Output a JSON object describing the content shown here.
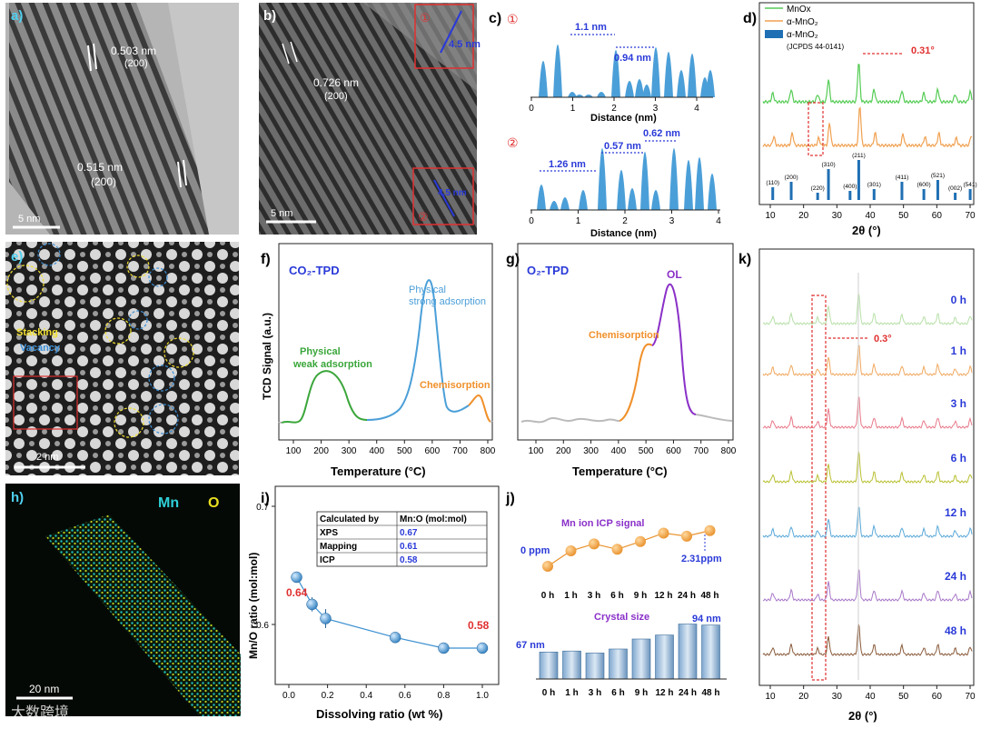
{
  "panels": {
    "a": {
      "label": "a)",
      "d1": "0.503 nm",
      "hkl1": "(200)",
      "d2": "0.515 nm",
      "hkl2": "(200)",
      "scale": "5 nm"
    },
    "b": {
      "label": "b)",
      "d1": "0.726 nm",
      "hkl1": "(200)",
      "scale": "5 nm",
      "inset1": "4.5 nm",
      "inset2": "4.5 nm",
      "m1": "①",
      "m2": "②"
    },
    "c": {
      "label": "c)",
      "m1": "①",
      "m2": "②",
      "xlabel": "Distance (nm)",
      "top_ann": [
        "1.1 nm",
        "0.94 nm"
      ],
      "bot_ann": [
        "1.26 nm",
        "0.57 nm",
        "0.62 nm"
      ],
      "top_ticks": [
        "0",
        "1",
        "2",
        "3",
        "4"
      ],
      "bot_ticks": [
        "0",
        "1",
        "2",
        "3",
        "4"
      ]
    },
    "d": {
      "label": "d)",
      "legend": [
        "MnOx",
        "α-MnO₂",
        "α-MnO₂",
        "(JCPDS 44-0141)"
      ],
      "shift": "0.31°",
      "xlabel": "2θ (°)",
      "ticks": [
        "10",
        "20",
        "30",
        "40",
        "50",
        "60",
        "70"
      ],
      "hkl": [
        "(110)",
        "(200)",
        "(220)",
        "(310)",
        "(400)",
        "(211)",
        "(301)",
        "(411)",
        "(600)",
        "(521)",
        "(002)",
        "(541)"
      ]
    },
    "e": {
      "label": "e)",
      "stacking": "Stacking",
      "vacancy": "Vacancy",
      "scale": "2 nm"
    },
    "f": {
      "label": "f)",
      "title": "CO₂-TPD",
      "ylabel": "TCD Signal (a.u.)",
      "xlabel": "Temperature (°C)",
      "weak": [
        "Physical",
        "weak adsorption"
      ],
      "strong": [
        "Physical",
        "strong adsorption"
      ],
      "chemi": "Chemisorption",
      "ticks": [
        "100",
        "200",
        "300",
        "400",
        "500",
        "600",
        "700",
        "800"
      ]
    },
    "g": {
      "label": "g)",
      "title": "O₂-TPD",
      "ol": "OL",
      "chemi": "Chemisorption",
      "xlabel": "Temperature (°C)",
      "ticks": [
        "100",
        "200",
        "300",
        "400",
        "500",
        "600",
        "700",
        "800"
      ]
    },
    "h": {
      "label": "h)",
      "mn": "Mn",
      "o": "O",
      "scale": "20 nm"
    },
    "i": {
      "label": "i)",
      "ylabel": "Mn/O ratio (mol:mol)",
      "xlabel": "Dissolving ratio (wt %)",
      "first": "0.64",
      "last": "0.58",
      "yticks": [
        "0.6",
        "0.7"
      ],
      "xticks": [
        "0.0",
        "0.2",
        "0.4",
        "0.6",
        "0.8",
        "1.0"
      ],
      "table": {
        "head": [
          "Calculated by",
          "Mn:O (mol:mol)"
        ],
        "rows": [
          [
            "XPS",
            "0.67"
          ],
          [
            "Mapping",
            "0.61"
          ],
          [
            "ICP",
            "0.58"
          ]
        ]
      }
    },
    "j": {
      "label": "j)",
      "icp_title": "Mn ion ICP signal",
      "start": "0 ppm",
      "end": "2.31ppm",
      "crystal_title": "Crystal size",
      "c_start": "67 nm",
      "c_end": "94 nm",
      "times": [
        "0 h",
        "1 h",
        "3 h",
        "6 h",
        "9 h",
        "12 h",
        "24 h",
        "48 h"
      ]
    },
    "k": {
      "label": "k)",
      "shift": "0.3°",
      "xlabel": "2θ (°)",
      "times": [
        "0 h",
        "1 h",
        "3 h",
        "6 h",
        "12 h",
        "24 h",
        "48 h"
      ],
      "ticks": [
        "10",
        "20",
        "30",
        "40",
        "50",
        "60",
        "70"
      ]
    }
  },
  "watermark": "大数跨境",
  "chart_data": [
    {
      "type": "bar",
      "title": "Crystal size",
      "categories": [
        "0 h",
        "1 h",
        "3 h",
        "6 h",
        "9 h",
        "12 h",
        "24 h",
        "48 h"
      ],
      "values": [
        67,
        68,
        66,
        70,
        80,
        84,
        95,
        94
      ],
      "ylabel": "Crystal size (nm)"
    },
    {
      "type": "line",
      "title": "Mn ion ICP signal",
      "categories": [
        "0 h",
        "1 h",
        "3 h",
        "6 h",
        "9 h",
        "12 h",
        "24 h",
        "48 h"
      ],
      "values": [
        0,
        1.0,
        1.45,
        1.1,
        1.6,
        2.15,
        1.95,
        2.31
      ],
      "ylabel": "ppm"
    },
    {
      "type": "scatter",
      "title": "Mn/O ratio vs dissolving ratio",
      "xlabel": "Dissolving ratio (wt %)",
      "ylabel": "Mn/O ratio (mol:mol)",
      "x": [
        0.04,
        0.12,
        0.19,
        0.55,
        0.8,
        1.0
      ],
      "y": [
        0.64,
        0.617,
        0.605,
        0.589,
        0.58,
        0.58
      ],
      "ylim": [
        0.55,
        0.7
      ],
      "xlim": [
        0,
        1.05
      ]
    }
  ]
}
